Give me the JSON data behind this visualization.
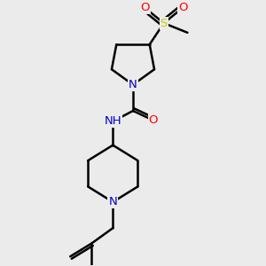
{
  "background_color": "#ebebeb",
  "xlim": [
    1.0,
    9.0
  ],
  "ylim": [
    0.5,
    11.5
  ],
  "bond_lw": 1.8,
  "font_size": 9.5
}
